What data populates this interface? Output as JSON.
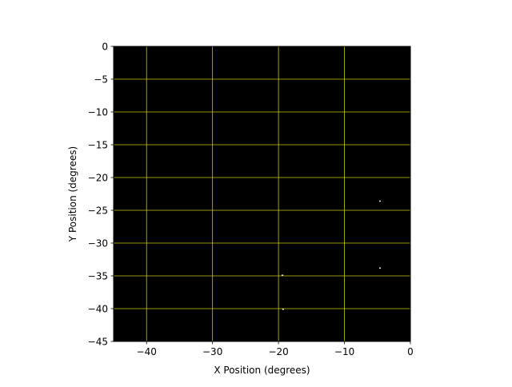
{
  "chart_data": {
    "type": "scatter",
    "xlabel": "X Position (degrees)",
    "ylabel": "Y Position (degrees)",
    "xlim": [
      -45,
      0
    ],
    "ylim": [
      -45,
      0
    ],
    "xticks": [
      -40,
      -30,
      -20,
      -10,
      0
    ],
    "yticks": [
      0,
      -5,
      -10,
      -15,
      -20,
      -25,
      -30,
      -35,
      -40,
      -45
    ],
    "grid": true,
    "colors": {
      "background": "#000000",
      "grid": "#c8c800",
      "points": "#ffffff"
    },
    "points": [
      {
        "x": -19.4,
        "y": -34.9
      },
      {
        "x": -19.3,
        "y": -40.1
      },
      {
        "x": -4.6,
        "y": -33.8
      },
      {
        "x": -4.6,
        "y": -23.6
      }
    ]
  }
}
